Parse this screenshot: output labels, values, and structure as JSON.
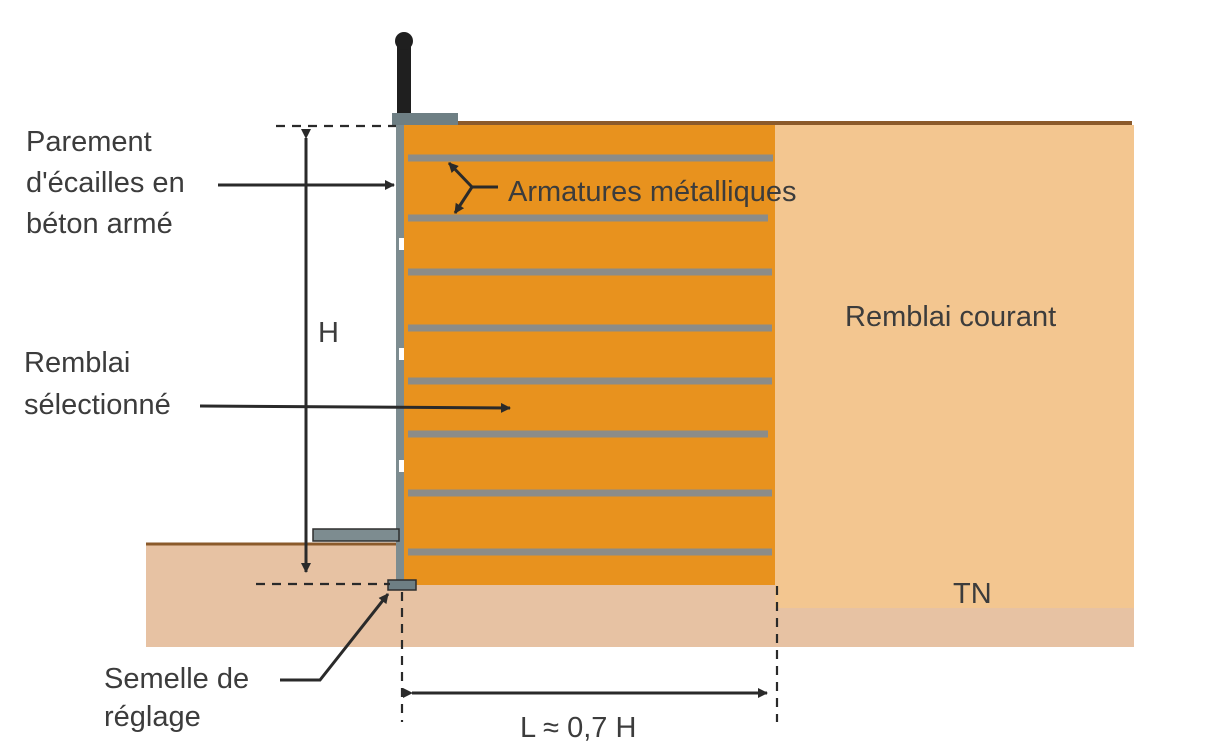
{
  "labels": {
    "parement": [
      "Parement",
      "d'écailles en",
      "béton armé"
    ],
    "armatures": "Armatures métalliques",
    "remblai_selectionne": [
      "Remblai",
      "sélectionné"
    ],
    "remblai_courant": "Remblai courant",
    "hauteur": "H",
    "terrain_naturel": "TN",
    "semelle": [
      "Semelle de",
      "réglage"
    ],
    "longueur": "L ≈ 0,7 H"
  },
  "colors": {
    "selected_fill": "#E8921E",
    "common_fill": "#F3C690",
    "natural_ground": "#E7C2A3",
    "ground_line": "#8B5A2B",
    "facing_panel": "#7D8C90",
    "reinforcement": "#8C8C88",
    "label_text": "#3C3C3C"
  }
}
